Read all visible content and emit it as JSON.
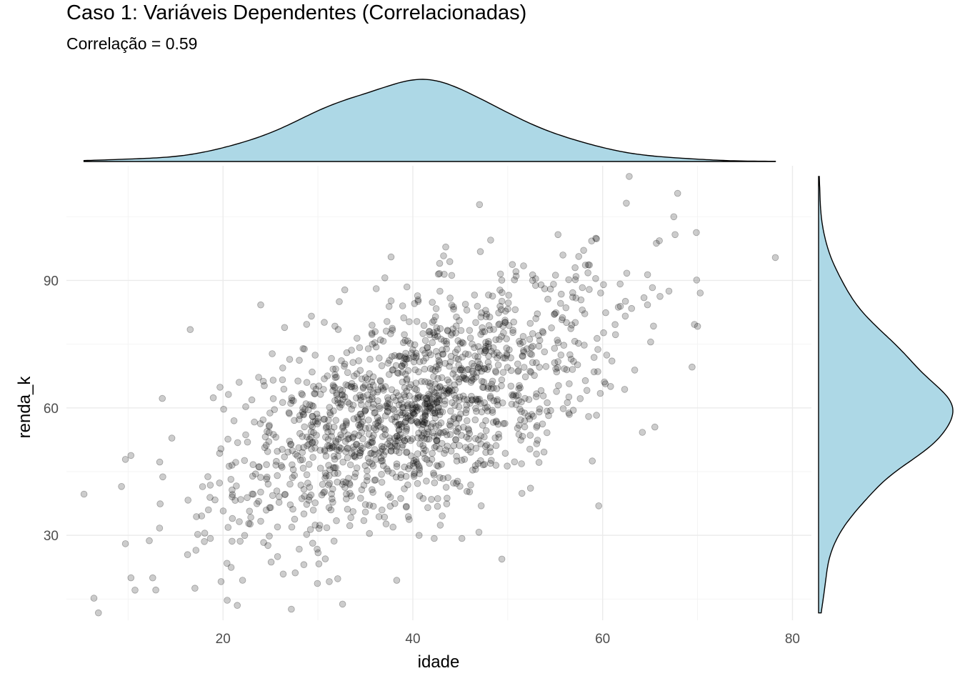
{
  "chart_data": {
    "type": "scatter",
    "title": "Caso 1: Variáveis Dependentes (Correlacionadas)",
    "subtitle": "Correlação = 0.59",
    "xlabel": "idade",
    "ylabel": "renda_k",
    "xlim": [
      3.5,
      82
    ],
    "ylim": [
      10,
      117
    ],
    "x_ticks": [
      20,
      40,
      60,
      80
    ],
    "y_ticks": [
      30,
      60,
      90
    ],
    "grid": true,
    "correlation": 0.59,
    "n_points": 1500,
    "x_mean": 40,
    "x_sd": 10,
    "y_mean": 60,
    "y_sd": 15,
    "point_color": "#000000",
    "point_alpha": 0.2,
    "marginal_fill": "#add8e6",
    "marginal_type": "density",
    "highlighted_points": [
      {
        "x": 6.4,
        "y": 15.2
      },
      {
        "x": 9.3,
        "y": 41.5
      },
      {
        "x": 10.3,
        "y": 48.8
      },
      {
        "x": 10.3,
        "y": 20.0
      },
      {
        "x": 62.8,
        "y": 114.5
      },
      {
        "x": 67.9,
        "y": 110.5
      },
      {
        "x": 67.5,
        "y": 105.0
      },
      {
        "x": 62.5,
        "y": 108.2
      },
      {
        "x": 78.2,
        "y": 95.4
      },
      {
        "x": 55.3,
        "y": 100.8
      },
      {
        "x": 48.2,
        "y": 99.5
      },
      {
        "x": 70.0,
        "y": 79.2
      },
      {
        "x": 27.2,
        "y": 12.6
      },
      {
        "x": 32.6,
        "y": 13.8
      },
      {
        "x": 21.5,
        "y": 13.5
      },
      {
        "x": 38.3,
        "y": 19.4
      },
      {
        "x": 31.2,
        "y": 19.1
      },
      {
        "x": 65.5,
        "y": 55.5
      }
    ]
  }
}
